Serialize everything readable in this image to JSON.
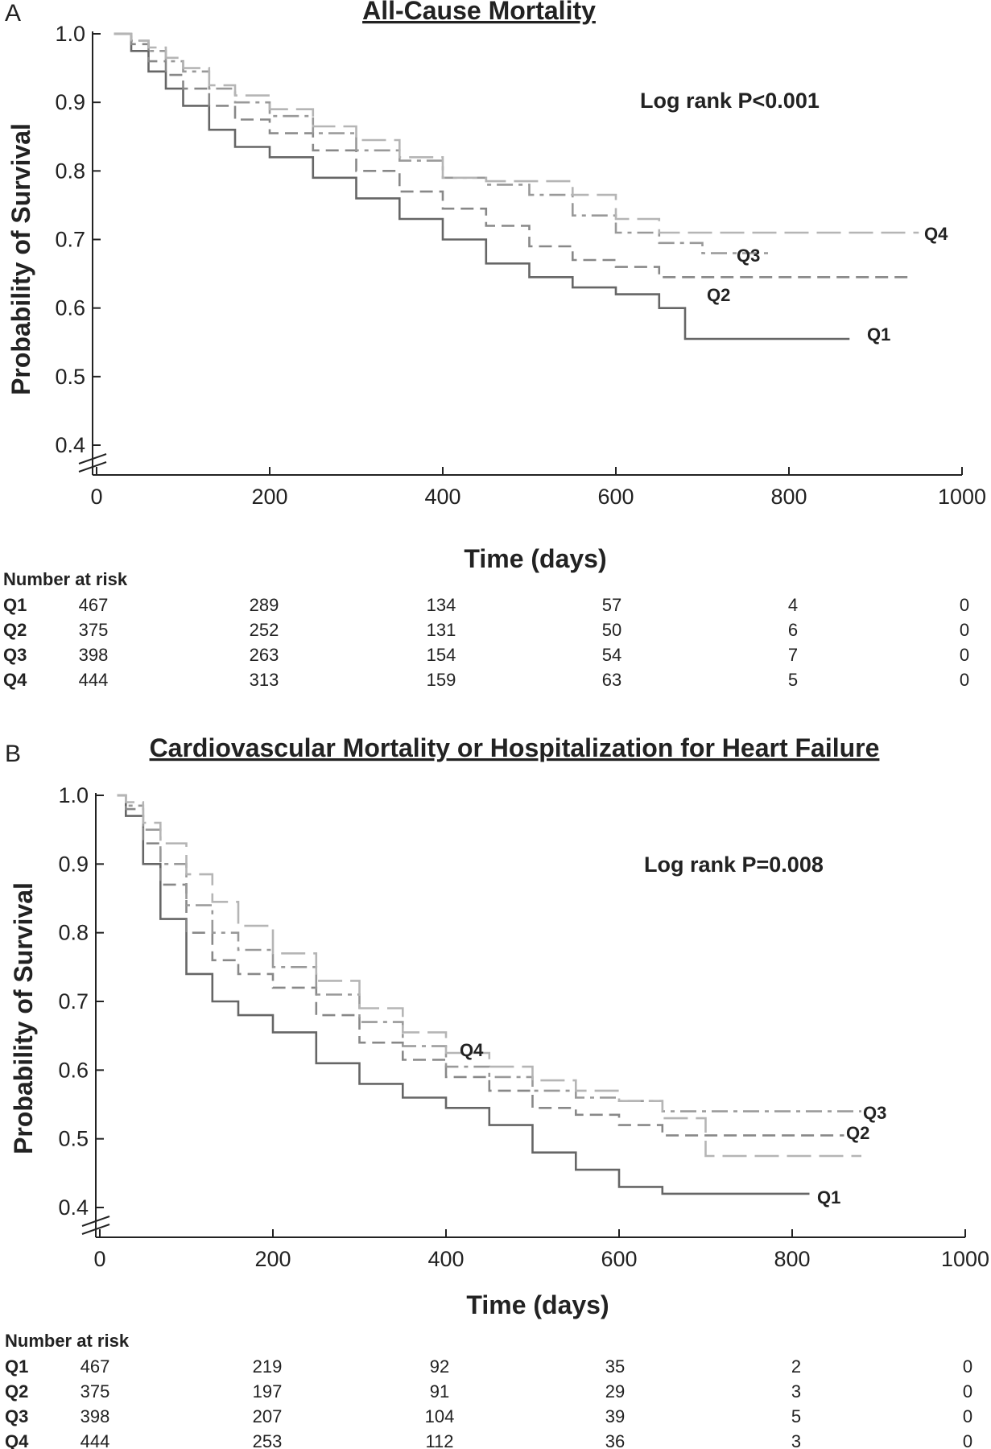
{
  "chart_data": [
    {
      "type": "line",
      "panel": "A",
      "title": "All-Cause Mortality",
      "xlabel": "Time (days)",
      "ylabel": "Probability of Survival",
      "xlim": [
        0,
        1000
      ],
      "ylim": [
        0.4,
        1.0
      ],
      "x_ticks": [
        "0",
        "200",
        "400",
        "600",
        "800",
        "1000"
      ],
      "y_ticks": [
        "0.4",
        "0.5",
        "0.6",
        "0.7",
        "0.8",
        "0.9",
        "1.0"
      ],
      "annotation": "Log rank P<0.001",
      "legend": "none",
      "series": [
        {
          "name": "Q1",
          "color": "#666666",
          "dash": "solid",
          "x": [
            20,
            40,
            60,
            80,
            100,
            130,
            160,
            200,
            250,
            300,
            350,
            400,
            450,
            500,
            550,
            600,
            650,
            680,
            870
          ],
          "y": [
            1.0,
            0.975,
            0.945,
            0.92,
            0.895,
            0.86,
            0.835,
            0.82,
            0.79,
            0.76,
            0.73,
            0.7,
            0.665,
            0.645,
            0.63,
            0.62,
            0.6,
            0.555,
            0.555
          ]
        },
        {
          "name": "Q2",
          "color": "#888888",
          "dash": "dash",
          "x": [
            20,
            40,
            60,
            80,
            100,
            130,
            160,
            200,
            250,
            300,
            350,
            400,
            450,
            500,
            550,
            600,
            650,
            940
          ],
          "y": [
            1.0,
            0.985,
            0.96,
            0.94,
            0.92,
            0.895,
            0.875,
            0.855,
            0.83,
            0.8,
            0.77,
            0.745,
            0.72,
            0.69,
            0.67,
            0.66,
            0.645,
            0.645
          ]
        },
        {
          "name": "Q3",
          "color": "#999999",
          "dash": "dashdot",
          "x": [
            20,
            40,
            60,
            80,
            100,
            130,
            160,
            200,
            250,
            300,
            350,
            400,
            450,
            500,
            550,
            600,
            650,
            700,
            780
          ],
          "y": [
            1.0,
            0.99,
            0.975,
            0.96,
            0.945,
            0.92,
            0.9,
            0.88,
            0.855,
            0.83,
            0.815,
            0.79,
            0.78,
            0.765,
            0.735,
            0.71,
            0.695,
            0.68,
            0.68
          ]
        },
        {
          "name": "Q4",
          "color": "#b5b5b5",
          "dash": "longdash",
          "x": [
            20,
            40,
            60,
            80,
            100,
            130,
            160,
            200,
            250,
            300,
            350,
            400,
            450,
            500,
            550,
            600,
            650,
            950
          ],
          "y": [
            1.0,
            0.99,
            0.98,
            0.965,
            0.95,
            0.925,
            0.91,
            0.89,
            0.865,
            0.845,
            0.82,
            0.79,
            0.785,
            0.785,
            0.765,
            0.73,
            0.71,
            0.71
          ]
        }
      ],
      "risk_table": {
        "title": "Number at risk",
        "rows": [
          {
            "group": "Q1",
            "values": [
              "467",
              "289",
              "134",
              "57",
              "4",
              "0"
            ]
          },
          {
            "group": "Q2",
            "values": [
              "375",
              "252",
              "131",
              "50",
              "6",
              "0"
            ]
          },
          {
            "group": "Q3",
            "values": [
              "398",
              "263",
              "154",
              "54",
              "7",
              "0"
            ]
          },
          {
            "group": "Q4",
            "values": [
              "444",
              "313",
              "159",
              "63",
              "5",
              "0"
            ]
          }
        ]
      }
    },
    {
      "type": "line",
      "panel": "B",
      "title": "Cardiovascular Mortality or Hospitalization for Heart Failure",
      "xlabel": "Time (days)",
      "ylabel": "Probability of Survival",
      "xlim": [
        0,
        1000
      ],
      "ylim": [
        0.4,
        1.0
      ],
      "x_ticks": [
        "0",
        "200",
        "400",
        "600",
        "800",
        "1000"
      ],
      "y_ticks": [
        "0.4",
        "0.5",
        "0.6",
        "0.7",
        "0.8",
        "0.9",
        "1.0"
      ],
      "annotation": "Log rank P=0.008",
      "legend": "none",
      "series": [
        {
          "name": "Q1",
          "color": "#666666",
          "dash": "solid",
          "x": [
            20,
            30,
            50,
            70,
            100,
            130,
            160,
            200,
            250,
            300,
            350,
            400,
            450,
            500,
            550,
            600,
            650,
            820
          ],
          "y": [
            1.0,
            0.97,
            0.9,
            0.82,
            0.74,
            0.7,
            0.68,
            0.655,
            0.61,
            0.58,
            0.56,
            0.545,
            0.52,
            0.48,
            0.455,
            0.43,
            0.42,
            0.42
          ]
        },
        {
          "name": "Q2",
          "color": "#888888",
          "dash": "dash",
          "x": [
            20,
            30,
            50,
            70,
            100,
            130,
            160,
            200,
            250,
            300,
            350,
            400,
            450,
            500,
            550,
            600,
            650,
            860
          ],
          "y": [
            1.0,
            0.98,
            0.93,
            0.87,
            0.8,
            0.76,
            0.74,
            0.72,
            0.68,
            0.64,
            0.615,
            0.59,
            0.57,
            0.545,
            0.535,
            0.52,
            0.505,
            0.505
          ]
        },
        {
          "name": "Q3",
          "color": "#999999",
          "dash": "dashdot",
          "x": [
            20,
            30,
            50,
            70,
            100,
            130,
            160,
            200,
            250,
            300,
            350,
            400,
            450,
            500,
            550,
            600,
            650,
            880
          ],
          "y": [
            1.0,
            0.985,
            0.95,
            0.9,
            0.84,
            0.8,
            0.775,
            0.75,
            0.71,
            0.67,
            0.635,
            0.605,
            0.59,
            0.57,
            0.56,
            0.555,
            0.54,
            0.54
          ]
        },
        {
          "name": "Q4",
          "color": "#b5b5b5",
          "dash": "longdash",
          "x": [
            20,
            30,
            50,
            70,
            100,
            130,
            160,
            200,
            250,
            300,
            350,
            400,
            450,
            500,
            550,
            600,
            650,
            700,
            880
          ],
          "y": [
            1.0,
            0.99,
            0.96,
            0.93,
            0.885,
            0.845,
            0.81,
            0.77,
            0.73,
            0.69,
            0.655,
            0.625,
            0.605,
            0.585,
            0.57,
            0.555,
            0.53,
            0.475,
            0.475
          ]
        }
      ],
      "risk_table": {
        "title": "Number at risk",
        "rows": [
          {
            "group": "Q1",
            "values": [
              "467",
              "219",
              "92",
              "35",
              "2",
              "0"
            ]
          },
          {
            "group": "Q2",
            "values": [
              "375",
              "197",
              "91",
              "29",
              "3",
              "0"
            ]
          },
          {
            "group": "Q3",
            "values": [
              "398",
              "207",
              "104",
              "39",
              "5",
              "0"
            ]
          },
          {
            "group": "Q4",
            "values": [
              "444",
              "253",
              "112",
              "36",
              "3",
              "0"
            ]
          }
        ]
      }
    }
  ]
}
